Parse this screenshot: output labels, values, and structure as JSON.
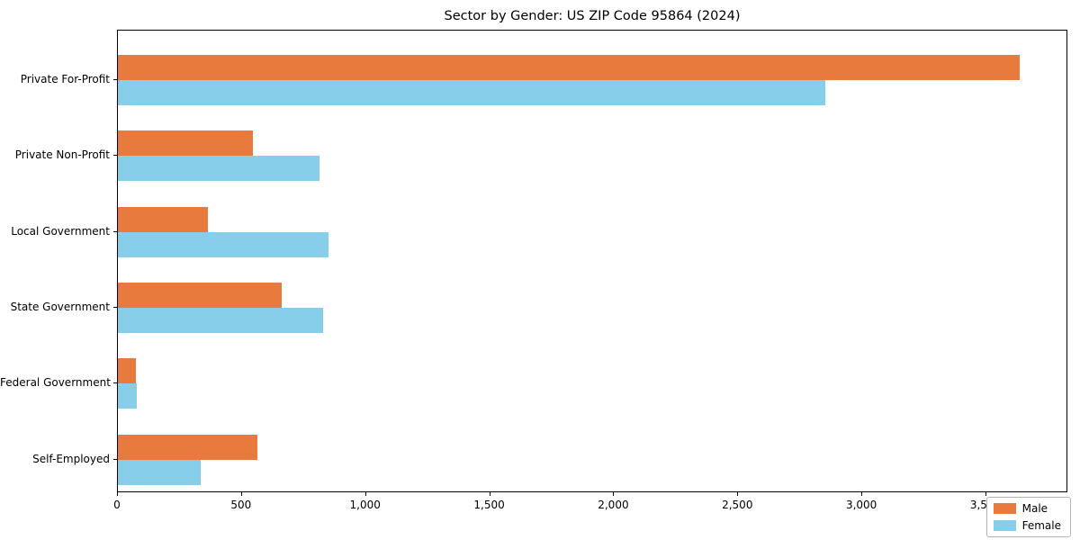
{
  "title": "Sector by Gender: US ZIP Code 95864 (2024)",
  "colors": {
    "male": "#e97a3d",
    "female": "#87ceeb",
    "axis": "#000000",
    "legend_border": "#b3b3b3",
    "background": "#ffffff"
  },
  "chart_data": {
    "type": "bar",
    "orientation": "horizontal",
    "title": "Sector by Gender: US ZIP Code 95864 (2024)",
    "categories": [
      "Private For-Profit",
      "Private Non-Profit",
      "Local Government",
      "State Government",
      "Federal Government",
      "Self-Employed"
    ],
    "series": [
      {
        "name": "Male",
        "color": "#e97a3d",
        "values": [
          3640,
          545,
          365,
          660,
          72,
          565
        ]
      },
      {
        "name": "Female",
        "color": "#87ceeb",
        "values": [
          2855,
          815,
          850,
          830,
          76,
          335
        ]
      }
    ],
    "xlabel": "",
    "ylabel": "",
    "xlim": [
      0,
      3830
    ],
    "xticks": [
      0,
      500,
      1000,
      1500,
      2000,
      2500,
      3000,
      3500
    ],
    "xtick_labels": [
      "0",
      "500",
      "1,000",
      "1,500",
      "2,000",
      "2,500",
      "3,000",
      "3,500"
    ],
    "grid": false,
    "legend_position": "lower right"
  },
  "legend": {
    "items": [
      {
        "label": "Male"
      },
      {
        "label": "Female"
      }
    ]
  }
}
